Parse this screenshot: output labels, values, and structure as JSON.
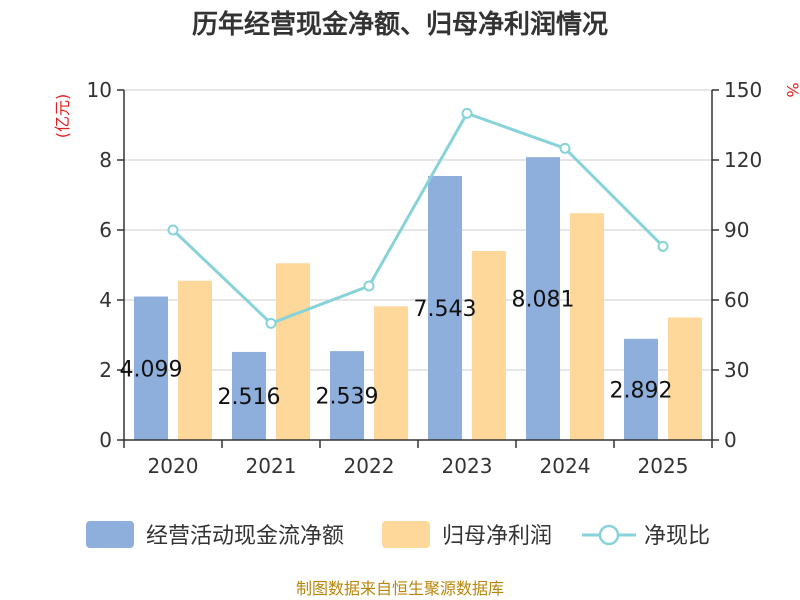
{
  "chart_data": {
    "type": "bar",
    "title": "历年经营现金净额、归母净利润情况",
    "categories": [
      "2020",
      "2021",
      "2022",
      "2023",
      "2024",
      "2025"
    ],
    "series": [
      {
        "name": "经营活动现金流净额",
        "type": "bar",
        "axis": "left",
        "color": "#8eaedb",
        "values": [
          4.099,
          2.516,
          2.539,
          7.543,
          8.081,
          2.892
        ],
        "labels": [
          "4.099",
          "2.516",
          "2.539",
          "7.543",
          "8.081",
          "2.892"
        ]
      },
      {
        "name": "归母净利润",
        "type": "bar",
        "axis": "left",
        "color": "#fdd89a",
        "values": [
          4.55,
          5.05,
          3.82,
          5.4,
          6.48,
          3.5
        ]
      },
      {
        "name": "净现比",
        "type": "line",
        "axis": "right",
        "color": "#88d3d9",
        "values": [
          90,
          50,
          66,
          140,
          125,
          83
        ]
      }
    ],
    "left_axis": {
      "unit": "(亿元)",
      "ylim": [
        0,
        10
      ],
      "ticks": [
        "0",
        "2",
        "4",
        "6",
        "8",
        "10"
      ]
    },
    "right_axis": {
      "unit": "%",
      "ylim": [
        0,
        150
      ],
      "ticks": [
        "0",
        "30",
        "60",
        "90",
        "120",
        "150"
      ]
    },
    "grid": true,
    "legend_position": "bottom"
  },
  "source": "制图数据来自恒生聚源数据库"
}
